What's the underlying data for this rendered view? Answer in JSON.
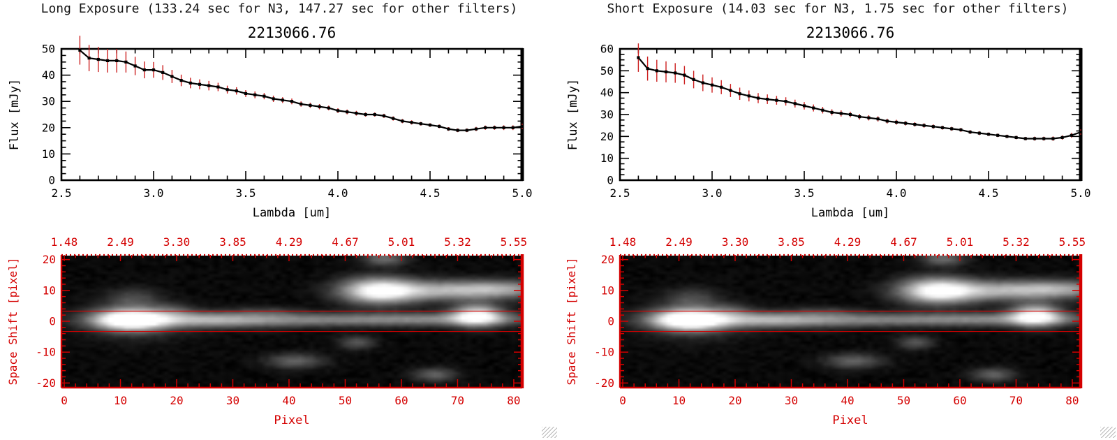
{
  "panels": [
    {
      "header": "Long Exposure (133.24 sec for N3, 147.27 sec for other filters)"
    },
    {
      "header": "Short Exposure (14.03 sec for N3, 1.75 sec for other filters)"
    }
  ],
  "chart_data": [
    {
      "type": "line",
      "panel": "Long Exposure",
      "title": "2213066.76",
      "xlabel": "Lambda [um]",
      "ylabel": "Flux [mJy]",
      "xlim": [
        2.5,
        5.0
      ],
      "ylim": [
        0,
        50
      ],
      "xticks": [
        2.5,
        3.0,
        3.5,
        4.0,
        4.5,
        5.0
      ],
      "xtick_labels": [
        "2.5",
        "3.0",
        "3.5",
        "4.0",
        "4.5",
        "5.0"
      ],
      "yticks": [
        0,
        10,
        20,
        30,
        40,
        50
      ],
      "ytick_labels": [
        "0",
        "10",
        "20",
        "30",
        "40",
        "50"
      ],
      "x_minor": 0.1,
      "y_minor": 2.5,
      "line_color": "#000000",
      "errorbar_color": "#cc2020",
      "x": [
        2.6,
        2.65,
        2.7,
        2.75,
        2.8,
        2.85,
        2.9,
        2.95,
        3.0,
        3.05,
        3.1,
        3.15,
        3.2,
        3.25,
        3.3,
        3.35,
        3.4,
        3.45,
        3.5,
        3.55,
        3.6,
        3.65,
        3.7,
        3.75,
        3.8,
        3.85,
        3.9,
        3.95,
        4.0,
        4.05,
        4.1,
        4.15,
        4.2,
        4.25,
        4.3,
        4.35,
        4.4,
        4.45,
        4.5,
        4.55,
        4.6,
        4.65,
        4.7,
        4.75,
        4.8,
        4.85,
        4.9,
        4.95,
        5.0
      ],
      "y": [
        49.5,
        46.5,
        46.0,
        45.5,
        45.5,
        45.0,
        43.5,
        42.0,
        42.0,
        41.0,
        39.5,
        38.0,
        37.0,
        36.5,
        36.0,
        35.5,
        34.5,
        34.0,
        33.0,
        32.5,
        32.0,
        31.0,
        30.5,
        30.0,
        29.0,
        28.5,
        28.0,
        27.5,
        26.5,
        26.0,
        25.5,
        25.0,
        25.0,
        24.5,
        23.5,
        22.5,
        22.0,
        21.5,
        21.0,
        20.5,
        19.5,
        19.0,
        19.0,
        19.5,
        20.0,
        20.0,
        20.0,
        20.0,
        20.5
      ],
      "yerr": [
        5.5,
        5.0,
        4.8,
        4.5,
        4.5,
        4.0,
        3.5,
        3.2,
        3.0,
        2.8,
        2.5,
        2.2,
        2.0,
        1.9,
        1.8,
        1.6,
        1.5,
        1.4,
        1.3,
        1.3,
        1.2,
        1.2,
        1.1,
        1.1,
        1.0,
        1.0,
        1.0,
        0.9,
        0.9,
        0.9,
        0.9,
        0.8,
        0.8,
        0.8,
        0.8,
        0.8,
        0.8,
        0.7,
        0.7,
        0.7,
        0.7,
        0.7,
        0.7,
        0.8,
        0.8,
        0.8,
        0.9,
        0.9,
        1.0
      ]
    },
    {
      "type": "heatmap",
      "panel": "Long Exposure",
      "xlabel": "Pixel",
      "ylabel": "Space Shift [pixel]",
      "top_axis_labels": [
        "1.48",
        "2.49",
        "3.30",
        "3.85",
        "4.29",
        "4.67",
        "5.01",
        "5.32",
        "5.55"
      ],
      "xlim": [
        -0.5,
        81.5
      ],
      "ylim": [
        -21.5,
        21.5
      ],
      "xticks": [
        0,
        10,
        20,
        30,
        40,
        50,
        60,
        70,
        80
      ],
      "xtick_labels": [
        "0",
        "10",
        "20",
        "30",
        "40",
        "50",
        "60",
        "70",
        "80"
      ],
      "yticks": [
        -20,
        -10,
        0,
        10,
        20
      ],
      "ytick_labels": [
        "-20",
        "-10",
        "0",
        "10",
        "20"
      ],
      "x_minor": 2,
      "y_minor": 2,
      "axis_color": "#d40000",
      "aperture_lines_y": [
        3.3,
        -3.3
      ],
      "blobs": [
        {
          "cx": 11.5,
          "cy": 0.5,
          "sx": 4.2,
          "sy": 2.3,
          "a": 1.15
        },
        {
          "cx": 13,
          "cy": 0.5,
          "sx": 6,
          "sy": 4.5,
          "a": 0.15
        },
        {
          "cx": 24,
          "cy": 0.5,
          "sx": 10,
          "sy": 1.8,
          "a": 0.45
        },
        {
          "cx": 45,
          "cy": 0.5,
          "sx": 20,
          "sy": 1.5,
          "a": 0.35
        },
        {
          "cx": 70,
          "cy": 0.8,
          "sx": 14,
          "sy": 1.4,
          "a": 0.28
        },
        {
          "cx": 12,
          "cy": 7.5,
          "sx": 3.2,
          "sy": 2.2,
          "a": 0.2
        },
        {
          "cx": 19,
          "cy": 3.5,
          "sx": 2.5,
          "sy": 1.5,
          "a": 0.16
        },
        {
          "cx": 56,
          "cy": 10,
          "sx": 4.5,
          "sy": 2.8,
          "a": 1.0
        },
        {
          "cx": 66,
          "cy": 10,
          "sx": 7,
          "sy": 2.2,
          "a": 0.5
        },
        {
          "cx": 77.5,
          "cy": 10.5,
          "sx": 6.5,
          "sy": 2.0,
          "a": 0.55
        },
        {
          "cx": 73.5,
          "cy": 2,
          "sx": 3,
          "sy": 2.4,
          "a": 0.9
        },
        {
          "cx": 41,
          "cy": -13,
          "sx": 3.5,
          "sy": 1.7,
          "a": 0.3
        },
        {
          "cx": 52,
          "cy": -7,
          "sx": 2.2,
          "sy": 1.5,
          "a": 0.26
        },
        {
          "cx": 66,
          "cy": -17.5,
          "sx": 2.6,
          "sy": 1.5,
          "a": 0.3
        },
        {
          "cx": 57,
          "cy": 20.5,
          "sx": 2.6,
          "sy": 1.6,
          "a": 0.35
        },
        {
          "cx": 36,
          "cy": 3.2,
          "sx": 4,
          "sy": 1.2,
          "a": 0.12
        }
      ]
    },
    {
      "type": "line",
      "panel": "Short Exposure",
      "title": "2213066.76",
      "xlabel": "Lambda [um]",
      "ylabel": "Flux [mJy]",
      "xlim": [
        2.5,
        5.0
      ],
      "ylim": [
        0,
        60
      ],
      "xticks": [
        2.5,
        3.0,
        3.5,
        4.0,
        4.5,
        5.0
      ],
      "xtick_labels": [
        "2.5",
        "3.0",
        "3.5",
        "4.0",
        "4.5",
        "5.0"
      ],
      "yticks": [
        0,
        10,
        20,
        30,
        40,
        50,
        60
      ],
      "ytick_labels": [
        "0",
        "10",
        "20",
        "30",
        "40",
        "50",
        "60"
      ],
      "x_minor": 0.1,
      "y_minor": 2.5,
      "line_color": "#000000",
      "errorbar_color": "#cc2020",
      "x": [
        2.6,
        2.65,
        2.7,
        2.75,
        2.8,
        2.85,
        2.9,
        2.95,
        3.0,
        3.05,
        3.1,
        3.15,
        3.2,
        3.25,
        3.3,
        3.35,
        3.4,
        3.45,
        3.5,
        3.55,
        3.6,
        3.65,
        3.7,
        3.75,
        3.8,
        3.85,
        3.9,
        3.95,
        4.0,
        4.05,
        4.1,
        4.15,
        4.2,
        4.25,
        4.3,
        4.35,
        4.4,
        4.45,
        4.5,
        4.55,
        4.6,
        4.65,
        4.7,
        4.75,
        4.8,
        4.85,
        4.9,
        4.95,
        5.0
      ],
      "y": [
        56,
        51,
        50,
        49.5,
        49,
        48,
        46,
        44.5,
        43.5,
        42.5,
        41,
        39.5,
        38.5,
        37.5,
        37,
        36.5,
        36,
        35,
        34,
        33,
        32,
        31,
        30.5,
        30,
        29,
        28.5,
        28,
        27,
        26.5,
        26,
        25.5,
        25,
        24.5,
        24,
        23.5,
        23,
        22,
        21.5,
        21,
        20.5,
        20,
        19.5,
        19,
        19,
        19,
        19,
        19.5,
        20.5,
        22
      ],
      "yerr": [
        6.5,
        5.5,
        5.0,
        4.8,
        4.5,
        4.2,
        4.0,
        3.8,
        3.5,
        3.2,
        3.0,
        2.8,
        2.5,
        2.3,
        2.2,
        2.0,
        1.9,
        1.8,
        1.7,
        1.6,
        1.5,
        1.4,
        1.4,
        1.3,
        1.3,
        1.2,
        1.2,
        1.1,
        1.1,
        1.0,
        1.0,
        1.0,
        1.0,
        0.9,
        0.9,
        0.9,
        0.9,
        0.9,
        0.8,
        0.8,
        0.8,
        0.8,
        0.8,
        0.9,
        0.9,
        1.0,
        1.0,
        1.1,
        1.2
      ]
    },
    {
      "type": "heatmap",
      "panel": "Short Exposure",
      "xlabel": "Pixel",
      "ylabel": "Space Shift [pixel]",
      "top_axis_labels": [
        "1.48",
        "2.49",
        "3.30",
        "3.85",
        "4.29",
        "4.67",
        "5.01",
        "5.32",
        "5.55"
      ],
      "xlim": [
        -0.5,
        81.5
      ],
      "ylim": [
        -21.5,
        21.5
      ],
      "xticks": [
        0,
        10,
        20,
        30,
        40,
        50,
        60,
        70,
        80
      ],
      "xtick_labels": [
        "0",
        "10",
        "20",
        "30",
        "40",
        "50",
        "60",
        "70",
        "80"
      ],
      "yticks": [
        -20,
        -10,
        0,
        10,
        20
      ],
      "ytick_labels": [
        "-20",
        "-10",
        "0",
        "10",
        "20"
      ],
      "x_minor": 2,
      "y_minor": 2,
      "axis_color": "#d40000",
      "aperture_lines_y": [
        3.3,
        -3.3
      ],
      "blobs": [
        {
          "cx": 11.5,
          "cy": 0.5,
          "sx": 4.2,
          "sy": 2.3,
          "a": 1.15
        },
        {
          "cx": 13,
          "cy": 0.5,
          "sx": 6,
          "sy": 4.5,
          "a": 0.15
        },
        {
          "cx": 24,
          "cy": 0.5,
          "sx": 10,
          "sy": 1.8,
          "a": 0.45
        },
        {
          "cx": 45,
          "cy": 0.5,
          "sx": 20,
          "sy": 1.5,
          "a": 0.35
        },
        {
          "cx": 70,
          "cy": 0.8,
          "sx": 14,
          "sy": 1.4,
          "a": 0.28
        },
        {
          "cx": 12,
          "cy": 7.5,
          "sx": 3.2,
          "sy": 2.2,
          "a": 0.2
        },
        {
          "cx": 19,
          "cy": 3.5,
          "sx": 2.5,
          "sy": 1.5,
          "a": 0.16
        },
        {
          "cx": 56,
          "cy": 10,
          "sx": 4.5,
          "sy": 2.8,
          "a": 1.0
        },
        {
          "cx": 66,
          "cy": 10,
          "sx": 7,
          "sy": 2.2,
          "a": 0.5
        },
        {
          "cx": 77.5,
          "cy": 10.5,
          "sx": 6.5,
          "sy": 2.0,
          "a": 0.55
        },
        {
          "cx": 73.5,
          "cy": 2,
          "sx": 3,
          "sy": 2.4,
          "a": 0.9
        },
        {
          "cx": 41,
          "cy": -13,
          "sx": 3.5,
          "sy": 1.7,
          "a": 0.3
        },
        {
          "cx": 52,
          "cy": -7,
          "sx": 2.2,
          "sy": 1.5,
          "a": 0.26
        },
        {
          "cx": 66,
          "cy": -17.5,
          "sx": 2.6,
          "sy": 1.5,
          "a": 0.3
        },
        {
          "cx": 57,
          "cy": 20.5,
          "sx": 2.6,
          "sy": 1.6,
          "a": 0.35
        },
        {
          "cx": 36,
          "cy": 3.2,
          "sx": 4,
          "sy": 1.2,
          "a": 0.12
        }
      ]
    }
  ]
}
